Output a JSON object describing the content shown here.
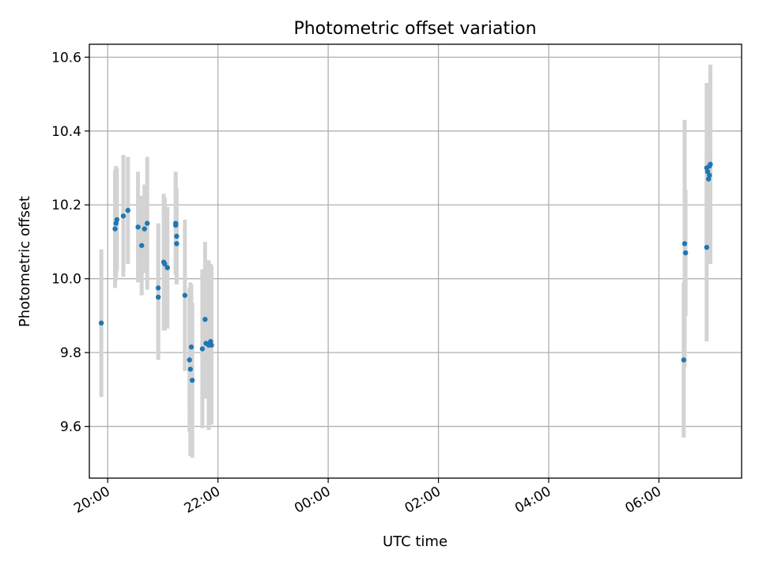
{
  "chart_data": {
    "type": "scatter",
    "title": "Photometric offset variation",
    "xlabel": "UTC time",
    "ylabel": "Photometric offset",
    "x_axis_kind": "time",
    "xlim": [
      "19:40",
      "07:30"
    ],
    "ylim": [
      9.46,
      10.635
    ],
    "x_ticks": [
      "20:00",
      "22:00",
      "00:00",
      "02:00",
      "04:00",
      "06:00"
    ],
    "y_ticks": [
      9.6,
      9.8,
      10.0,
      10.2,
      10.4,
      10.6
    ],
    "y_tick_labels": [
      "9.6",
      "9.8",
      "10.0",
      "10.2",
      "10.4",
      "10.6"
    ],
    "grid": true,
    "legend": false,
    "colors": {
      "points": "#1f77b4",
      "error_bars": "#d3d3d3",
      "grid": "#b0b0b0"
    },
    "series": [
      {
        "points": [
          {
            "x": "19:53",
            "y": 9.88,
            "err": 0.2
          },
          {
            "x": "20:08",
            "y": 10.135,
            "err": 0.16
          },
          {
            "x": "20:09",
            "y": 10.15,
            "err": 0.155
          },
          {
            "x": "20:10",
            "y": 10.16,
            "err": 0.14
          },
          {
            "x": "20:17",
            "y": 10.17,
            "err": 0.165
          },
          {
            "x": "20:22",
            "y": 10.185,
            "err": 0.145
          },
          {
            "x": "20:33",
            "y": 10.14,
            "err": 0.15
          },
          {
            "x": "20:37",
            "y": 10.09,
            "err": 0.135
          },
          {
            "x": "20:40",
            "y": 10.135,
            "err": 0.12
          },
          {
            "x": "20:43",
            "y": 10.15,
            "err": 0.18
          },
          {
            "x": "20:55",
            "y": 9.975,
            "err": 0.175
          },
          {
            "x": "20:55",
            "y": 9.95,
            "err": 0.17
          },
          {
            "x": "21:01",
            "y": 10.045,
            "err": 0.185
          },
          {
            "x": "21:02",
            "y": 10.04,
            "err": 0.18
          },
          {
            "x": "21:05",
            "y": 10.03,
            "err": 0.165
          },
          {
            "x": "21:14",
            "y": 10.15,
            "err": 0.14
          },
          {
            "x": "21:14",
            "y": 10.145,
            "err": 0.135
          },
          {
            "x": "21:15",
            "y": 10.115,
            "err": 0.13
          },
          {
            "x": "21:15",
            "y": 10.095,
            "err": 0.11
          },
          {
            "x": "21:24",
            "y": 9.955,
            "err": 0.205
          },
          {
            "x": "21:29",
            "y": 9.78,
            "err": 0.195
          },
          {
            "x": "21:30",
            "y": 9.755,
            "err": 0.235
          },
          {
            "x": "21:31",
            "y": 9.815,
            "err": 0.17
          },
          {
            "x": "21:32",
            "y": 9.725,
            "err": 0.21
          },
          {
            "x": "21:43",
            "y": 9.81,
            "err": 0.215
          },
          {
            "x": "21:46",
            "y": 9.89,
            "err": 0.21
          },
          {
            "x": "21:47",
            "y": 9.825,
            "err": 0.15
          },
          {
            "x": "21:50",
            "y": 9.82,
            "err": 0.23
          },
          {
            "x": "21:52",
            "y": 9.83,
            "err": 0.21
          },
          {
            "x": "21:53",
            "y": 9.82,
            "err": 0.215
          },
          {
            "x": "06:27",
            "y": 9.78,
            "err": 0.21
          },
          {
            "x": "06:28",
            "y": 10.095,
            "err": 0.335
          },
          {
            "x": "06:29",
            "y": 10.07,
            "err": 0.17
          },
          {
            "x": "06:52",
            "y": 10.085,
            "err": 0.255
          },
          {
            "x": "06:52",
            "y": 10.3,
            "err": 0.23
          },
          {
            "x": "06:53",
            "y": 10.29,
            "err": 0.235
          },
          {
            "x": "06:54",
            "y": 10.27,
            "err": 0.225
          },
          {
            "x": "06:55",
            "y": 10.305,
            "err": 0.225
          },
          {
            "x": "06:55",
            "y": 10.28,
            "err": 0.235
          },
          {
            "x": "06:56",
            "y": 10.31,
            "err": 0.27
          }
        ]
      }
    ]
  }
}
